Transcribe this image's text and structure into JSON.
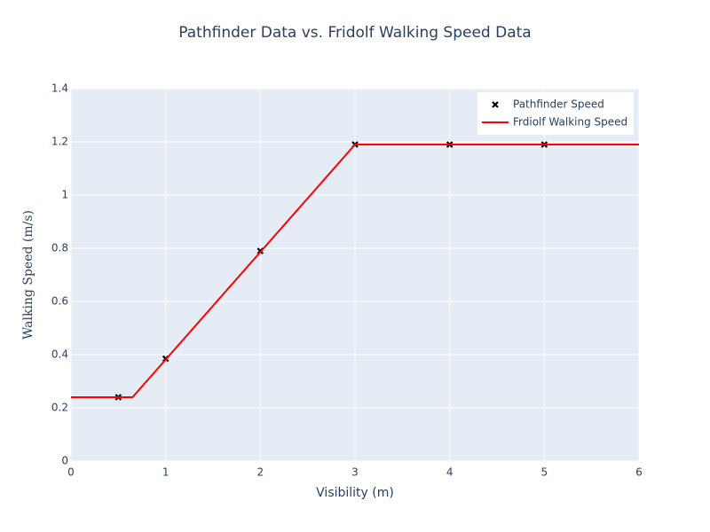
{
  "chart_data": {
    "type": "scatter",
    "title": "Pathfinder Data vs. Fridolf Walking Speed Data",
    "x_label": "Visibility (m)",
    "y_label": "Walking Speed (m/s)",
    "xlim": [
      0,
      6
    ],
    "xticks": [
      0,
      1,
      2,
      3,
      4,
      5,
      6
    ],
    "ylim": [
      0,
      1.4
    ],
    "yticks": [
      0,
      0.2,
      0.4,
      0.6,
      0.8,
      1,
      1.2,
      1.4
    ],
    "grid": true,
    "legend": "top-right",
    "series": [
      {
        "name": "Pathfinder Speed",
        "mode": "markers",
        "color": "#000000",
        "x": [
          0.5,
          1,
          2,
          3,
          4,
          5
        ],
        "values": [
          0.24,
          0.385,
          0.79,
          1.19,
          1.19,
          1.19
        ]
      },
      {
        "name": "Frdiolf Walking Speed",
        "mode": "lines",
        "color": "#ff0000",
        "x": [
          0,
          0.65,
          3,
          6
        ],
        "values": [
          0.24,
          0.24,
          1.19,
          1.19
        ]
      }
    ]
  }
}
